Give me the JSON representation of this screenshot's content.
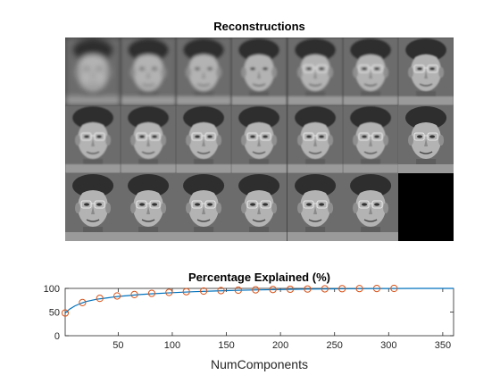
{
  "montage": {
    "title": "Reconstructions",
    "rows": 3,
    "cols": 7,
    "tiles": [
      {
        "blur": 3.2
      },
      {
        "blur": 2.2
      },
      {
        "blur": 1.8
      },
      {
        "blur": 1.4
      },
      {
        "blur": 1.2
      },
      {
        "blur": 1.0
      },
      {
        "blur": 0.9
      },
      {
        "blur": 0.8
      },
      {
        "blur": 0.7
      },
      {
        "blur": 0.6
      },
      {
        "blur": 0.5
      },
      {
        "blur": 0.45
      },
      {
        "blur": 0.4
      },
      {
        "blur": 0.35
      },
      {
        "blur": 0.3
      },
      {
        "blur": 0.25
      },
      {
        "blur": 0.2
      },
      {
        "blur": 0.15
      },
      {
        "blur": 0.1
      },
      {
        "blur": 0.05
      },
      {
        "blank": true
      }
    ]
  },
  "chart_data": {
    "type": "line",
    "title": "Percentage Explained (%)",
    "xlabel": "NumComponents",
    "ylabel": "",
    "xlim": [
      1,
      360
    ],
    "ylim": [
      0,
      100
    ],
    "xticks": [
      50,
      100,
      150,
      200,
      250,
      300,
      350
    ],
    "yticks": [
      0,
      50,
      100
    ],
    "grid": false,
    "series": [
      {
        "style": "line",
        "color": "#0072BD",
        "x": [
          1,
          5,
          10,
          15,
          20,
          30,
          40,
          50,
          60,
          70,
          80,
          100,
          120,
          140,
          160,
          180,
          200,
          225,
          250,
          275,
          300,
          330,
          360
        ],
        "y": [
          48,
          56,
          63,
          68,
          72,
          77,
          80,
          83,
          85,
          87,
          88.5,
          91,
          93,
          94.5,
          95.8,
          96.8,
          97.6,
          98.4,
          99,
          99.5,
          99.8,
          99.95,
          100
        ]
      },
      {
        "style": "markers",
        "marker": "circle",
        "color": "#D95319",
        "x": [
          1,
          17,
          33,
          49,
          65,
          81,
          97,
          113,
          129,
          145,
          161,
          177,
          193,
          209,
          225,
          241,
          257,
          273,
          289,
          305
        ],
        "y": [
          48,
          70,
          79,
          84,
          87,
          89.5,
          91.5,
          93,
          94.3,
          95.3,
          96.2,
          97,
          97.7,
          98.2,
          98.7,
          99.1,
          99.4,
          99.6,
          99.8,
          100
        ]
      }
    ]
  }
}
